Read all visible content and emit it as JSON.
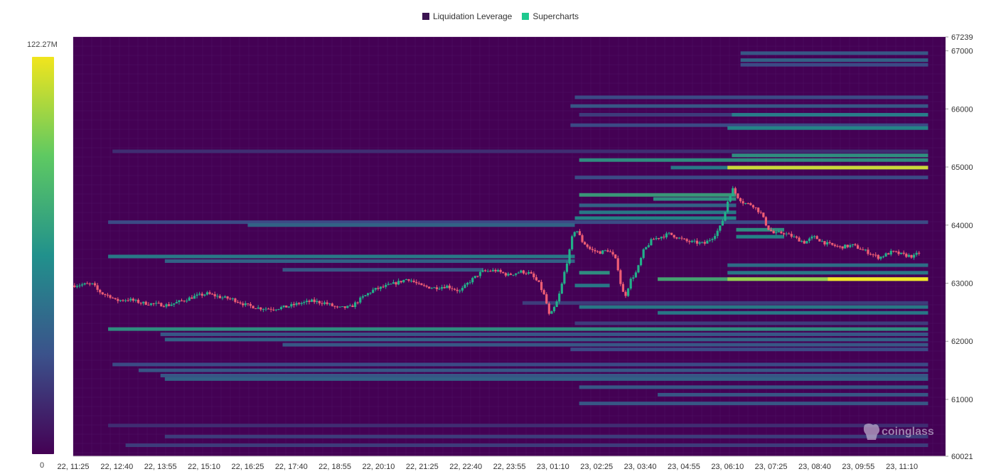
{
  "legend": {
    "items": [
      {
        "label": "Liquidation Leverage",
        "color": "#3b1451"
      },
      {
        "label": "Supercharts",
        "color": "#1fc98f"
      }
    ]
  },
  "colorbar": {
    "max_label": "122.27M",
    "min_label": "0",
    "colors": [
      "#f1e51d",
      "#5ec962",
      "#21918c",
      "#3b528b",
      "#440154"
    ]
  },
  "watermark": "coinglass",
  "colors": {
    "background": "#440154",
    "up_candle": "#22b08a",
    "down_candle": "#ef5d74"
  },
  "chart_data": {
    "type": "heatmap",
    "title": "",
    "xlabel": "",
    "ylabel": "",
    "ylim": [
      60021,
      67239
    ],
    "y_axis_side": "right",
    "y_ticks": [
      "67239",
      "67000",
      "66000",
      "65000",
      "64000",
      "63000",
      "62000",
      "61000",
      "60021"
    ],
    "x_ticks": [
      "22, 11:25",
      "22, 12:40",
      "22, 13:55",
      "22, 15:10",
      "22, 16:25",
      "22, 17:40",
      "22, 18:55",
      "22, 20:10",
      "22, 21:25",
      "22, 22:40",
      "22, 23:55",
      "23, 01:10",
      "23, 02:25",
      "23, 03:40",
      "23, 04:55",
      "23, 06:10",
      "23, 07:25",
      "23, 08:40",
      "23, 09:55",
      "23, 11:10"
    ],
    "liquidation_levels": [
      {
        "price": 66960,
        "x_start": 15.3,
        "x_end": 19.6,
        "intensity": 0.3
      },
      {
        "price": 66840,
        "x_start": 15.3,
        "x_end": 19.6,
        "intensity": 0.35
      },
      {
        "price": 66760,
        "x_start": 15.3,
        "x_end": 19.6,
        "intensity": 0.25
      },
      {
        "price": 66200,
        "x_start": 11.5,
        "x_end": 19.6,
        "intensity": 0.25
      },
      {
        "price": 66050,
        "x_start": 11.4,
        "x_end": 19.6,
        "intensity": 0.3
      },
      {
        "price": 65900,
        "x_start": 11.6,
        "x_end": 19.6,
        "intensity": 0.2
      },
      {
        "price": 65900,
        "x_start": 15.1,
        "x_end": 19.6,
        "intensity": 0.45
      },
      {
        "price": 65720,
        "x_start": 11.4,
        "x_end": 19.6,
        "intensity": 0.25
      },
      {
        "price": 65670,
        "x_start": 15.0,
        "x_end": 19.6,
        "intensity": 0.5
      },
      {
        "price": 65270,
        "x_start": 0.9,
        "x_end": 19.6,
        "intensity": 0.15
      },
      {
        "price": 65200,
        "x_start": 15.1,
        "x_end": 19.6,
        "intensity": 0.55
      },
      {
        "price": 65120,
        "x_start": 11.6,
        "x_end": 19.6,
        "intensity": 0.55
      },
      {
        "price": 64990,
        "x_start": 13.7,
        "x_end": 19.6,
        "intensity": 0.45
      },
      {
        "price": 64990,
        "x_start": 15.0,
        "x_end": 19.6,
        "intensity": 0.95
      },
      {
        "price": 64820,
        "x_start": 11.5,
        "x_end": 19.6,
        "intensity": 0.25
      },
      {
        "price": 64520,
        "x_start": 11.6,
        "x_end": 15.2,
        "intensity": 0.6
      },
      {
        "price": 64450,
        "x_start": 13.3,
        "x_end": 15.2,
        "intensity": 0.55
      },
      {
        "price": 64340,
        "x_start": 11.6,
        "x_end": 15.2,
        "intensity": 0.35
      },
      {
        "price": 64220,
        "x_start": 11.6,
        "x_end": 15.2,
        "intensity": 0.45
      },
      {
        "price": 64120,
        "x_start": 11.5,
        "x_end": 15.2,
        "intensity": 0.5
      },
      {
        "price": 64050,
        "x_start": 0.8,
        "x_end": 19.6,
        "intensity": 0.25
      },
      {
        "price": 64000,
        "x_start": 4.0,
        "x_end": 11.5,
        "intensity": 0.35
      },
      {
        "price": 63920,
        "x_start": 15.2,
        "x_end": 16.3,
        "intensity": 0.55
      },
      {
        "price": 63800,
        "x_start": 15.2,
        "x_end": 16.3,
        "intensity": 0.5
      },
      {
        "price": 63460,
        "x_start": 0.8,
        "x_end": 11.5,
        "intensity": 0.45
      },
      {
        "price": 63380,
        "x_start": 2.1,
        "x_end": 11.5,
        "intensity": 0.35
      },
      {
        "price": 63310,
        "x_start": 15.0,
        "x_end": 19.6,
        "intensity": 0.4
      },
      {
        "price": 63230,
        "x_start": 4.8,
        "x_end": 9.4,
        "intensity": 0.3
      },
      {
        "price": 63180,
        "x_start": 11.6,
        "x_end": 12.3,
        "intensity": 0.55
      },
      {
        "price": 63180,
        "x_start": 15.0,
        "x_end": 19.6,
        "intensity": 0.45
      },
      {
        "price": 63070,
        "x_start": 13.4,
        "x_end": 19.6,
        "intensity": 0.65
      },
      {
        "price": 63070,
        "x_start": 15.0,
        "x_end": 19.6,
        "intensity": 0.85
      },
      {
        "price": 63070,
        "x_start": 17.3,
        "x_end": 19.6,
        "intensity": 1.0
      },
      {
        "price": 62960,
        "x_start": 11.5,
        "x_end": 12.3,
        "intensity": 0.45
      },
      {
        "price": 62660,
        "x_start": 10.3,
        "x_end": 19.6,
        "intensity": 0.2
      },
      {
        "price": 62590,
        "x_start": 11.6,
        "x_end": 19.6,
        "intensity": 0.45
      },
      {
        "price": 62490,
        "x_start": 13.4,
        "x_end": 19.6,
        "intensity": 0.45
      },
      {
        "price": 62310,
        "x_start": 11.5,
        "x_end": 19.6,
        "intensity": 0.2
      },
      {
        "price": 62210,
        "x_start": 0.8,
        "x_end": 19.6,
        "intensity": 0.55
      },
      {
        "price": 62120,
        "x_start": 2.0,
        "x_end": 19.6,
        "intensity": 0.3
      },
      {
        "price": 62030,
        "x_start": 2.1,
        "x_end": 19.6,
        "intensity": 0.35
      },
      {
        "price": 61940,
        "x_start": 4.8,
        "x_end": 19.6,
        "intensity": 0.3
      },
      {
        "price": 61860,
        "x_start": 11.4,
        "x_end": 19.6,
        "intensity": 0.25
      },
      {
        "price": 61600,
        "x_start": 0.9,
        "x_end": 19.6,
        "intensity": 0.25
      },
      {
        "price": 61500,
        "x_start": 1.5,
        "x_end": 19.6,
        "intensity": 0.3
      },
      {
        "price": 61410,
        "x_start": 2.0,
        "x_end": 19.6,
        "intensity": 0.3
      },
      {
        "price": 61350,
        "x_start": 2.1,
        "x_end": 19.6,
        "intensity": 0.35
      },
      {
        "price": 61210,
        "x_start": 11.6,
        "x_end": 19.6,
        "intensity": 0.3
      },
      {
        "price": 61080,
        "x_start": 13.4,
        "x_end": 19.6,
        "intensity": 0.3
      },
      {
        "price": 60930,
        "x_start": 11.6,
        "x_end": 19.6,
        "intensity": 0.3
      },
      {
        "price": 60550,
        "x_start": 0.8,
        "x_end": 19.6,
        "intensity": 0.15
      },
      {
        "price": 60360,
        "x_start": 2.1,
        "x_end": 19.6,
        "intensity": 0.2
      },
      {
        "price": 60210,
        "x_start": 1.2,
        "x_end": 19.6,
        "intensity": 0.2
      }
    ],
    "price_path": [
      [
        0.0,
        62960
      ],
      [
        0.3,
        62980
      ],
      [
        0.5,
        62980
      ],
      [
        0.55,
        62900
      ],
      [
        0.7,
        62820
      ],
      [
        0.9,
        62770
      ],
      [
        1.0,
        62700
      ],
      [
        1.3,
        62720
      ],
      [
        1.6,
        62660
      ],
      [
        1.9,
        62640
      ],
      [
        2.2,
        62620
      ],
      [
        2.5,
        62690
      ],
      [
        2.8,
        62770
      ],
      [
        3.1,
        62820
      ],
      [
        3.4,
        62760
      ],
      [
        3.7,
        62720
      ],
      [
        4.0,
        62620
      ],
      [
        4.3,
        62570
      ],
      [
        4.6,
        62560
      ],
      [
        4.9,
        62590
      ],
      [
        5.2,
        62650
      ],
      [
        5.5,
        62690
      ],
      [
        5.8,
        62660
      ],
      [
        6.1,
        62570
      ],
      [
        6.4,
        62590
      ],
      [
        6.6,
        62720
      ],
      [
        6.9,
        62880
      ],
      [
        7.2,
        62950
      ],
      [
        7.5,
        63020
      ],
      [
        7.7,
        63080
      ],
      [
        8.0,
        62950
      ],
      [
        8.3,
        62920
      ],
      [
        8.6,
        62950
      ],
      [
        8.9,
        62860
      ],
      [
        9.1,
        63020
      ],
      [
        9.4,
        63200
      ],
      [
        9.7,
        63220
      ],
      [
        10.0,
        63140
      ],
      [
        10.3,
        63200
      ],
      [
        10.5,
        63170
      ],
      [
        10.7,
        63000
      ],
      [
        10.85,
        62750
      ],
      [
        10.95,
        62420
      ],
      [
        11.1,
        62640
      ],
      [
        11.2,
        62870
      ],
      [
        11.3,
        63220
      ],
      [
        11.4,
        63520
      ],
      [
        11.45,
        63750
      ],
      [
        11.55,
        63950
      ],
      [
        11.7,
        63720
      ],
      [
        11.9,
        63570
      ],
      [
        12.1,
        63530
      ],
      [
        12.3,
        63570
      ],
      [
        12.45,
        63430
      ],
      [
        12.55,
        63170
      ],
      [
        12.6,
        62860
      ],
      [
        12.7,
        62800
      ],
      [
        12.8,
        63050
      ],
      [
        12.95,
        63200
      ],
      [
        13.1,
        63550
      ],
      [
        13.3,
        63750
      ],
      [
        13.5,
        63800
      ],
      [
        13.7,
        63850
      ],
      [
        13.9,
        63780
      ],
      [
        14.1,
        63720
      ],
      [
        14.3,
        63700
      ],
      [
        14.5,
        63680
      ],
      [
        14.7,
        63800
      ],
      [
        14.85,
        63950
      ],
      [
        14.95,
        64150
      ],
      [
        15.05,
        64460
      ],
      [
        15.15,
        64620
      ],
      [
        15.25,
        64500
      ],
      [
        15.4,
        64380
      ],
      [
        15.6,
        64350
      ],
      [
        15.8,
        64200
      ],
      [
        15.95,
        63950
      ],
      [
        16.1,
        63850
      ],
      [
        16.3,
        63870
      ],
      [
        16.5,
        63810
      ],
      [
        16.8,
        63700
      ],
      [
        17.0,
        63800
      ],
      [
        17.3,
        63680
      ],
      [
        17.6,
        63620
      ],
      [
        17.9,
        63650
      ],
      [
        18.2,
        63550
      ],
      [
        18.5,
        63440
      ],
      [
        18.8,
        63540
      ],
      [
        19.1,
        63480
      ],
      [
        19.3,
        63460
      ],
      [
        19.4,
        63520
      ]
    ]
  }
}
